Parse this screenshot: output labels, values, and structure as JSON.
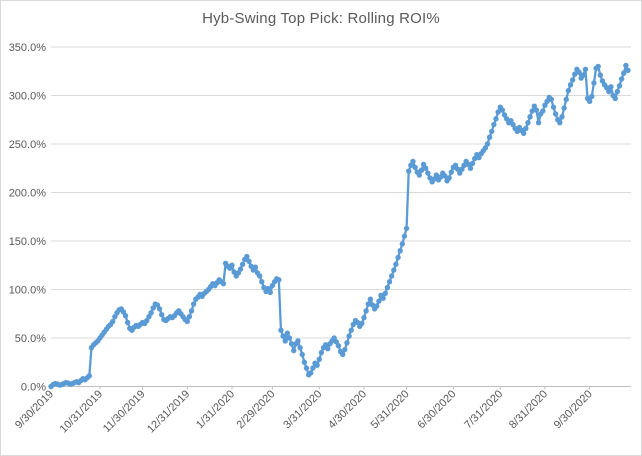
{
  "chart_data": {
    "type": "line",
    "title": "Hyb-Swing Top Pick: Rolling ROI%",
    "series": [
      {
        "name": "Rolling ROI%",
        "marker": "circle",
        "values": [
          0,
          2,
          3,
          2.5,
          1.5,
          2,
          3,
          4,
          3.5,
          2.5,
          3,
          4,
          5,
          4,
          6,
          8,
          7,
          9,
          11,
          40,
          43,
          45,
          47,
          50,
          53,
          56,
          59,
          62,
          64,
          67,
          72,
          76,
          79,
          80,
          77,
          73,
          66,
          60,
          58,
          61,
          63,
          62,
          64,
          66,
          65,
          68,
          72,
          76,
          81,
          85,
          84,
          80,
          74,
          69,
          68,
          70,
          72,
          71,
          73,
          76,
          78,
          75,
          72,
          69,
          67,
          72,
          78,
          85,
          90,
          92,
          95,
          93,
          96,
          98,
          100,
          103,
          106,
          104,
          107,
          110,
          108,
          106,
          127,
          124,
          122,
          125,
          118,
          114,
          117,
          121,
          126,
          131,
          134,
          129,
          124,
          120,
          123,
          117,
          114,
          108,
          102,
          98,
          101,
          97,
          104,
          108,
          111,
          110,
          58,
          52,
          47,
          55,
          50,
          44,
          37,
          44,
          47,
          40,
          33,
          25,
          19,
          12,
          14,
          19,
          24,
          22,
          28,
          35,
          40,
          43,
          39,
          44,
          47,
          50,
          46,
          42,
          36,
          33,
          38,
          45,
          52,
          58,
          64,
          68,
          66,
          62,
          65,
          71,
          78,
          85,
          90,
          84,
          80,
          83,
          88,
          94,
          91,
          96,
          102,
          108,
          114,
          120,
          126,
          133,
          140,
          147,
          155,
          163,
          222,
          228,
          232,
          226,
          221,
          218,
          223,
          229,
          225,
          220,
          215,
          211,
          214,
          218,
          213,
          216,
          220,
          217,
          212,
          215,
          221,
          226,
          228,
          224,
          220,
          224,
          228,
          232,
          229,
          225,
          230,
          235,
          239,
          236,
          240,
          243,
          246,
          250,
          257,
          263,
          270,
          276,
          283,
          288,
          285,
          280,
          276,
          272,
          274,
          270,
          266,
          263,
          267,
          264,
          261,
          266,
          272,
          278,
          284,
          289,
          285,
          272,
          281,
          284,
          290,
          294,
          298,
          296,
          288,
          281,
          275,
          272,
          278,
          287,
          296,
          305,
          311,
          316,
          322,
          327,
          324,
          318,
          321,
          327,
          297,
          294,
          299,
          313,
          328,
          330,
          321,
          315,
          311,
          308,
          304,
          309,
          300,
          297,
          304,
          310,
          317,
          323,
          331,
          326
        ]
      }
    ],
    "x_axis": {
      "tick_labels": [
        "9/30/2019",
        "10/31/2019",
        "11/30/2019",
        "12/31/2019",
        "1/31/2020",
        "2/29/2020",
        "3/31/2020",
        "4/30/2020",
        "5/31/2020",
        "6/30/2020",
        "7/31/2020",
        "8/31/2020",
        "9/30/2020"
      ],
      "tick_point_indices": [
        0,
        23,
        43,
        64,
        85,
        104,
        126,
        147,
        167,
        189,
        211,
        232,
        253
      ],
      "label_rotation_deg": -45
    },
    "y_axis": {
      "tick_labels": [
        "0.0%",
        "50.0%",
        "100.0%",
        "150.0%",
        "200.0%",
        "250.0%",
        "300.0%",
        "350.0%"
      ],
      "min": 0,
      "max": 350,
      "step": 50,
      "unit": "%"
    },
    "grid": "horizontal",
    "legend": "none"
  },
  "colors": {
    "line": "#5B9BD5",
    "marker": "#5B9BD5",
    "title_text": "#595959",
    "axis_text": "#595959",
    "gridline": "#d9d9d9",
    "axis_line": "#bfbfbf",
    "background": "#ffffff"
  }
}
